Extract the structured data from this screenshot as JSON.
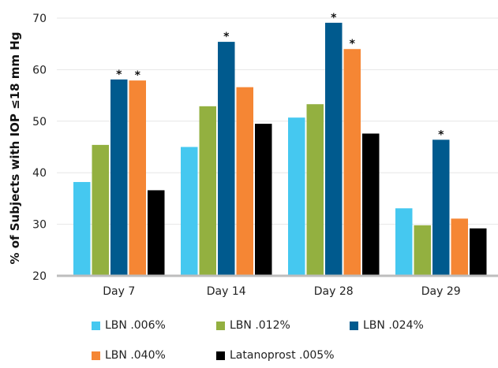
{
  "chart_data": {
    "type": "bar",
    "title": "",
    "xlabel": "",
    "ylabel": "% of Subjects with IOP ≤18 mm Hg",
    "ylim": [
      20,
      70
    ],
    "yticks": [
      "20",
      "30",
      "40",
      "50",
      "60",
      "70"
    ],
    "categories": [
      "Day 7",
      "Day 14",
      "Day 28",
      "Day 29"
    ],
    "grid": true,
    "legend_position": "bottom",
    "series": [
      {
        "name": "LBN .006%",
        "color": "#45c8f0",
        "values": [
          38.2,
          45.0,
          50.7,
          33.1
        ],
        "significant": [
          false,
          false,
          false,
          false
        ]
      },
      {
        "name": "LBN .012%",
        "color": "#93b040",
        "values": [
          45.4,
          52.9,
          53.3,
          29.8
        ],
        "significant": [
          false,
          false,
          false,
          false
        ]
      },
      {
        "name": "LBN .024%",
        "color": "#005a8e",
        "values": [
          58.1,
          65.4,
          69.1,
          46.4
        ],
        "significant": [
          true,
          true,
          true,
          true
        ]
      },
      {
        "name": "LBN .040%",
        "color": "#f58634",
        "values": [
          57.9,
          56.6,
          64.0,
          31.1
        ],
        "significant": [
          true,
          false,
          true,
          false
        ]
      },
      {
        "name": "Latanoprost .005%",
        "color": "#000000",
        "values": [
          36.6,
          49.5,
          47.6,
          29.2
        ],
        "significant": [
          false,
          false,
          false,
          false
        ]
      }
    ],
    "significance_marker": "*"
  }
}
